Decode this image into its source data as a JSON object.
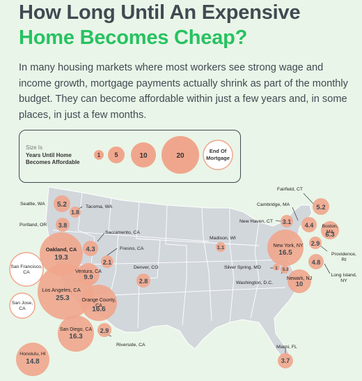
{
  "title_line1": "How Long Until An Expensive",
  "title_line2": "Home Becomes Cheap?",
  "intro": "In many housing markets where most workers see strong wage and income growth, mortgage payments actually shrink as part of the monthly budget. They can become affordable within just a few years and, in some places, in just a few months.",
  "legend": {
    "size_label": "Size Is",
    "description": "Years Until Home Becomes Affordable",
    "samples": [
      "1",
      "5",
      "10",
      "20"
    ],
    "end_label": "End Of Mortgage"
  },
  "colors": {
    "bubble": "#f0a68c",
    "title_green": "#27c261",
    "text_dark": "#3f4a52",
    "map_fill": "#d2d7dc",
    "background": "#e9f5e8"
  },
  "cities": [
    {
      "name": "Seattle, WA",
      "value": "5.2"
    },
    {
      "name": "Tacoma, WA",
      "value": "1.8"
    },
    {
      "name": "Portland, OR",
      "value": "3.8"
    },
    {
      "name": "Sacramento, CA",
      "value": "4.3"
    },
    {
      "name": "Oakland, CA",
      "value": "19.3"
    },
    {
      "name": "Fresno, CA",
      "value": "2.1"
    },
    {
      "name": "San Francisco, CA",
      "value": ""
    },
    {
      "name": "Ventura, CA",
      "value": "9.9"
    },
    {
      "name": "San Jose, CA",
      "value": ""
    },
    {
      "name": "Los Angeles, CA",
      "value": "25.3"
    },
    {
      "name": "Orange County, CA",
      "value": "16.6"
    },
    {
      "name": "San Diego, CA",
      "value": "16.3"
    },
    {
      "name": "Riverside, CA",
      "value": "2.9"
    },
    {
      "name": "Honolulu, HI",
      "value": "14.8"
    },
    {
      "name": "Denver, CO",
      "value": "2.8"
    },
    {
      "name": "Madison, WI",
      "value": "1.1"
    },
    {
      "name": "Fairfield, CT",
      "value": "5.2"
    },
    {
      "name": "Cambridge, MA",
      "value": "4.4"
    },
    {
      "name": "New Haven, CT",
      "value": "3.1"
    },
    {
      "name": "Boston, MA",
      "value": "6.3"
    },
    {
      "name": "New York, NY",
      "value": "16.5"
    },
    {
      "name": "Providence, RI",
      "value": "2.9"
    },
    {
      "name": "Long Island, NY",
      "value": "4.8"
    },
    {
      "name": "Silver Spring, MD",
      "value": "1"
    },
    {
      "name": "Washington, D.C.",
      "value": "5.3"
    },
    {
      "name": "Newark, NJ",
      "value": "10"
    },
    {
      "name": "Miami, FL",
      "value": "3.7"
    }
  ]
}
